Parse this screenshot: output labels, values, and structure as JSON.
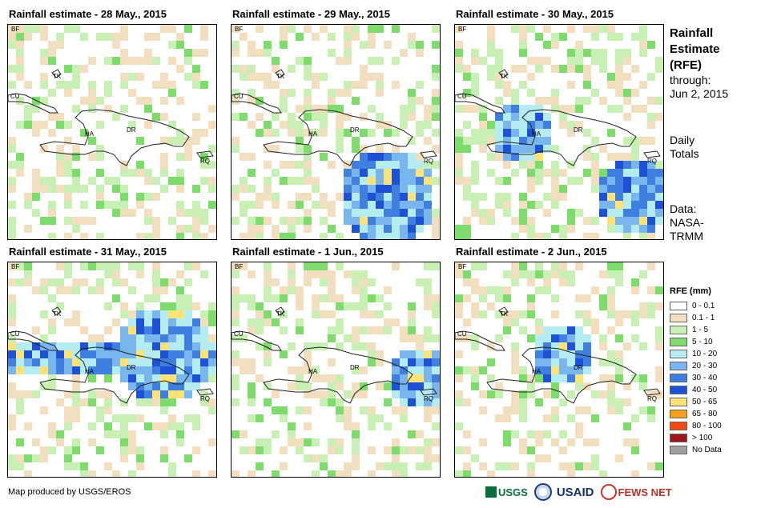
{
  "panels": [
    {
      "title": "Rainfall estimate - 28 May., 2015",
      "intensity": 0
    },
    {
      "title": "Rainfall estimate - 29 May., 2015",
      "intensity": 1
    },
    {
      "title": "Rainfall estimate - 30 May., 2015",
      "intensity": 2
    },
    {
      "title": "Rainfall estimate - 31 May., 2015",
      "intensity": 3
    },
    {
      "title": "Rainfall estimate - 1 Jun., 2015",
      "intensity": 4
    },
    {
      "title": "Rainfall estimate - 2 Jun., 2015",
      "intensity": 5
    }
  ],
  "map_labels": {
    "bf": "BF",
    "cu": "CU",
    "tk": "TK",
    "ha": "HA",
    "dr": "DR",
    "rq": "RQ"
  },
  "sidebar": {
    "title_line1": "Rainfall",
    "title_line2": "Estimate",
    "title_line3": "(RFE)",
    "through_label": "through:",
    "through_date": "Jun 2, 2015",
    "period_line1": "Daily",
    "period_line2": "Totals",
    "data_line1": "Data:",
    "data_line2": "NASA-",
    "data_line3": "TRMM"
  },
  "legend": {
    "title": "RFE (mm)",
    "items": [
      {
        "label": "0 - 0.1",
        "color": "#ffffff"
      },
      {
        "label": "0.1 - 1",
        "color": "#f1dfc0"
      },
      {
        "label": "1 - 5",
        "color": "#c8f0b4"
      },
      {
        "label": "5 - 10",
        "color": "#7ddc6c"
      },
      {
        "label": "10 - 20",
        "color": "#b4ecf2"
      },
      {
        "label": "20 - 30",
        "color": "#7ab6ee"
      },
      {
        "label": "30 - 40",
        "color": "#3f7fe0"
      },
      {
        "label": "40 - 50",
        "color": "#1d52d6"
      },
      {
        "label": "50 - 65",
        "color": "#fbe37a"
      },
      {
        "label": "65 - 80",
        "color": "#f6a018"
      },
      {
        "label": "80 - 100",
        "color": "#f24a12"
      },
      {
        "label": "> 100",
        "color": "#a0161c"
      },
      {
        "label": "No Data",
        "color": "#a0a0a0"
      }
    ]
  },
  "footer": {
    "credit": "Map produced by USGS/EROS"
  },
  "logos": {
    "usgs": "USGS",
    "usaid": "USAID",
    "fews": "FEWS NET"
  }
}
